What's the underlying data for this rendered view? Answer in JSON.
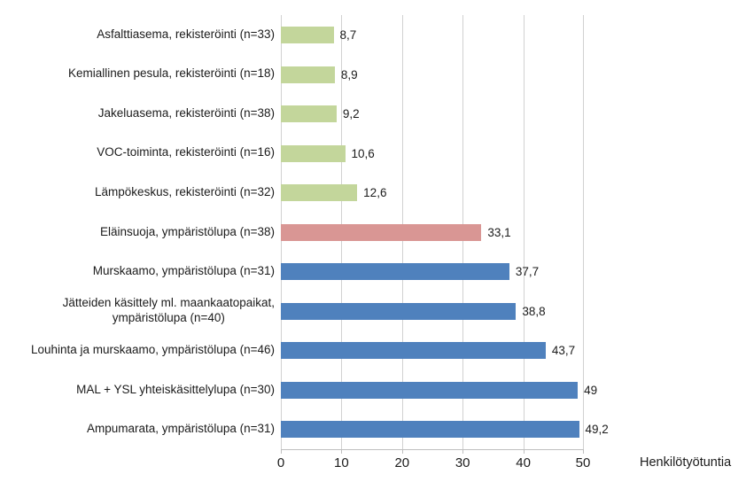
{
  "chart_data": {
    "type": "bar",
    "orientation": "horizontal",
    "title": "",
    "xlabel": "Henkilötyötuntia",
    "ylabel": "",
    "xlim": [
      0,
      50
    ],
    "x_ticks": [
      0,
      10,
      20,
      30,
      40,
      50
    ],
    "grid": "vertical major gridlines on",
    "legend": "none",
    "categories": [
      "Asfalttiasema, rekisteröinti (n=33)",
      "Kemiallinen pesula, rekisteröinti (n=18)",
      "Jakeluasema, rekisteröinti (n=38)",
      "VOC-toiminta, rekisteröinti (n=16)",
      "Lämpökeskus, rekisteröinti (n=32)",
      "Eläinsuoja, ympäristölupa (n=38)",
      "Murskaamo, ympäristölupa (n=31)",
      "Jätteiden käsittely ml. maankaatopaikat,\nympäristölupa (n=40)",
      "Louhinta ja murskaamo, ympäristölupa (n=46)",
      "MAL + YSL yhteiskäsittelylupa (n=30)",
      "Ampumarata, ympäristölupa (n=31)"
    ],
    "values": [
      8.7,
      8.9,
      9.2,
      10.6,
      12.6,
      33.1,
      37.7,
      38.8,
      43.7,
      49,
      49.2
    ],
    "value_labels": [
      "8,7",
      "8,9",
      "9,2",
      "10,6",
      "12,6",
      "33,1",
      "37,7",
      "38,8",
      "43,7",
      "49",
      "49,2"
    ],
    "bar_color_keys": [
      "green",
      "green",
      "green",
      "green",
      "green",
      "red",
      "blue",
      "blue",
      "blue",
      "blue",
      "blue"
    ],
    "colors": {
      "green": "#C3D69B",
      "red": "#D99694",
      "blue": "#4F81BD",
      "gridline": "#D1D1D1",
      "axis": "#BFBFBF",
      "text": "#1B1B1B"
    }
  }
}
